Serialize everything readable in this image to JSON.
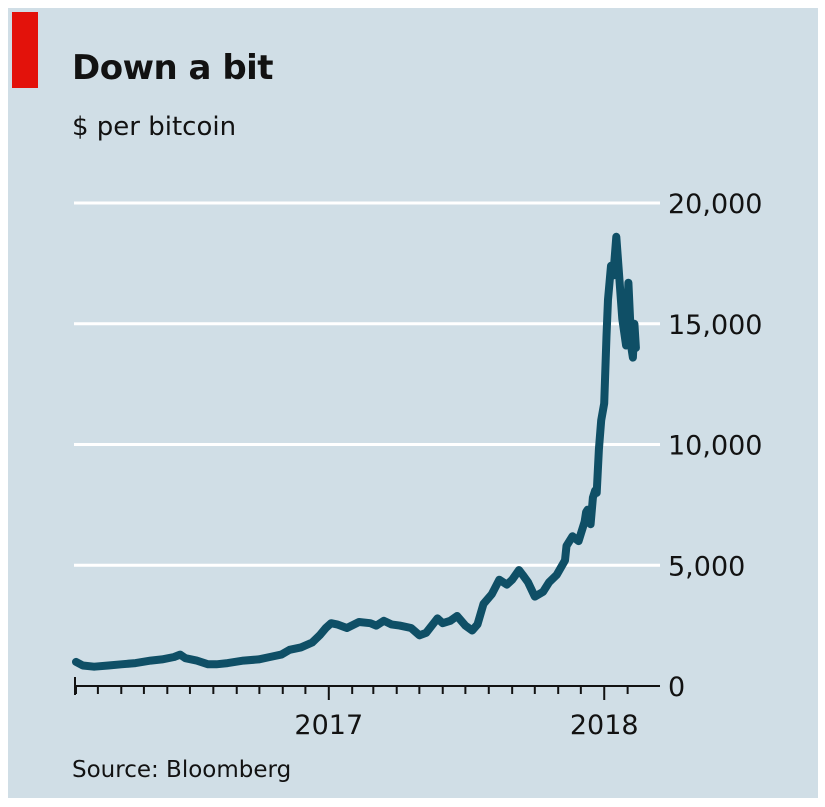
{
  "title": "Down a bit",
  "subtitle": "$ per bitcoin",
  "source": "Source: Bloomberg",
  "colors": {
    "background": "#d0dee6",
    "accent_tag": "#e3120b",
    "line": "#0f4f66",
    "grid": "#ffffff",
    "axis": "#121212"
  },
  "chart_data": {
    "type": "line",
    "title": "Down a bit",
    "ylabel": "$ per bitcoin",
    "ylim": [
      0,
      20000
    ],
    "yticks": [
      0,
      5000,
      10000,
      15000,
      20000
    ],
    "ytick_labels": [
      "0",
      "5,000",
      "10,000",
      "15,000",
      "20,000"
    ],
    "xlim": [
      "2016-02-01",
      "2018-02-28"
    ],
    "xtick_labels": [
      "2017",
      "2018"
    ],
    "grid": true,
    "series": [
      {
        "x": [
          "2016-02-01",
          "2016-02-10",
          "2016-02-25",
          "2016-03-15",
          "2016-04-01",
          "2016-04-20",
          "2016-05-10",
          "2016-05-25",
          "2016-06-10",
          "2016-06-18",
          "2016-06-25",
          "2016-07-10",
          "2016-07-25",
          "2016-08-05",
          "2016-08-20",
          "2016-09-10",
          "2016-09-30",
          "2016-10-15",
          "2016-10-30",
          "2016-11-10",
          "2016-11-25",
          "2016-12-10",
          "2016-12-20",
          "2016-12-28",
          "2017-01-04",
          "2017-01-12",
          "2017-01-25",
          "2017-02-10",
          "2017-02-25",
          "2017-03-05",
          "2017-03-15",
          "2017-03-25",
          "2017-04-05",
          "2017-04-20",
          "2017-05-01",
          "2017-05-10",
          "2017-05-20",
          "2017-05-25",
          "2017-06-01",
          "2017-06-11",
          "2017-06-20",
          "2017-07-01",
          "2017-07-10",
          "2017-07-17",
          "2017-07-25",
          "2017-08-05",
          "2017-08-15",
          "2017-08-25",
          "2017-09-01",
          "2017-09-10",
          "2017-09-15",
          "2017-09-22",
          "2017-10-01",
          "2017-10-12",
          "2017-10-20",
          "2017-10-30",
          "2017-11-10",
          "2017-11-12",
          "2017-11-20",
          "2017-11-28",
          "2017-12-01",
          "2017-12-06",
          "2017-12-08",
          "2017-12-10",
          "2017-12-12",
          "2017-12-14",
          "2017-12-17",
          "2017-12-20",
          "2017-12-22",
          "2017-12-25",
          "2017-12-28",
          "2018-01-01",
          "2018-01-04",
          "2018-01-06",
          "2018-01-10",
          "2018-01-13",
          "2018-01-17",
          "2018-01-20",
          "2018-01-25",
          "2018-01-30",
          "2018-02-02",
          "2018-02-06",
          "2018-02-08",
          "2018-02-10",
          "2018-02-12"
        ],
        "values": [
          1000,
          850,
          800,
          850,
          900,
          950,
          1050,
          1100,
          1200,
          1300,
          1150,
          1050,
          900,
          900,
          950,
          1050,
          1100,
          1200,
          1300,
          1500,
          1600,
          1800,
          2100,
          2400,
          2600,
          2550,
          2400,
          2650,
          2600,
          2500,
          2700,
          2550,
          2500,
          2400,
          2100,
          2200,
          2600,
          2800,
          2600,
          2700,
          2900,
          2500,
          2300,
          2550,
          3400,
          3800,
          4400,
          4200,
          4400,
          4800,
          4600,
          4300,
          3700,
          3900,
          4300,
          4600,
          5200,
          5800,
          6200,
          6000,
          6300,
          6800,
          7200,
          7300,
          7000,
          6700,
          7800,
          8100,
          8000,
          9800,
          11000,
          11700,
          14500,
          16000,
          17400,
          17000,
          18600,
          17300,
          15200,
          14100,
          16700,
          14000,
          13600,
          15000,
          14000
        ],
        "values_unused": []
      }
    ]
  }
}
